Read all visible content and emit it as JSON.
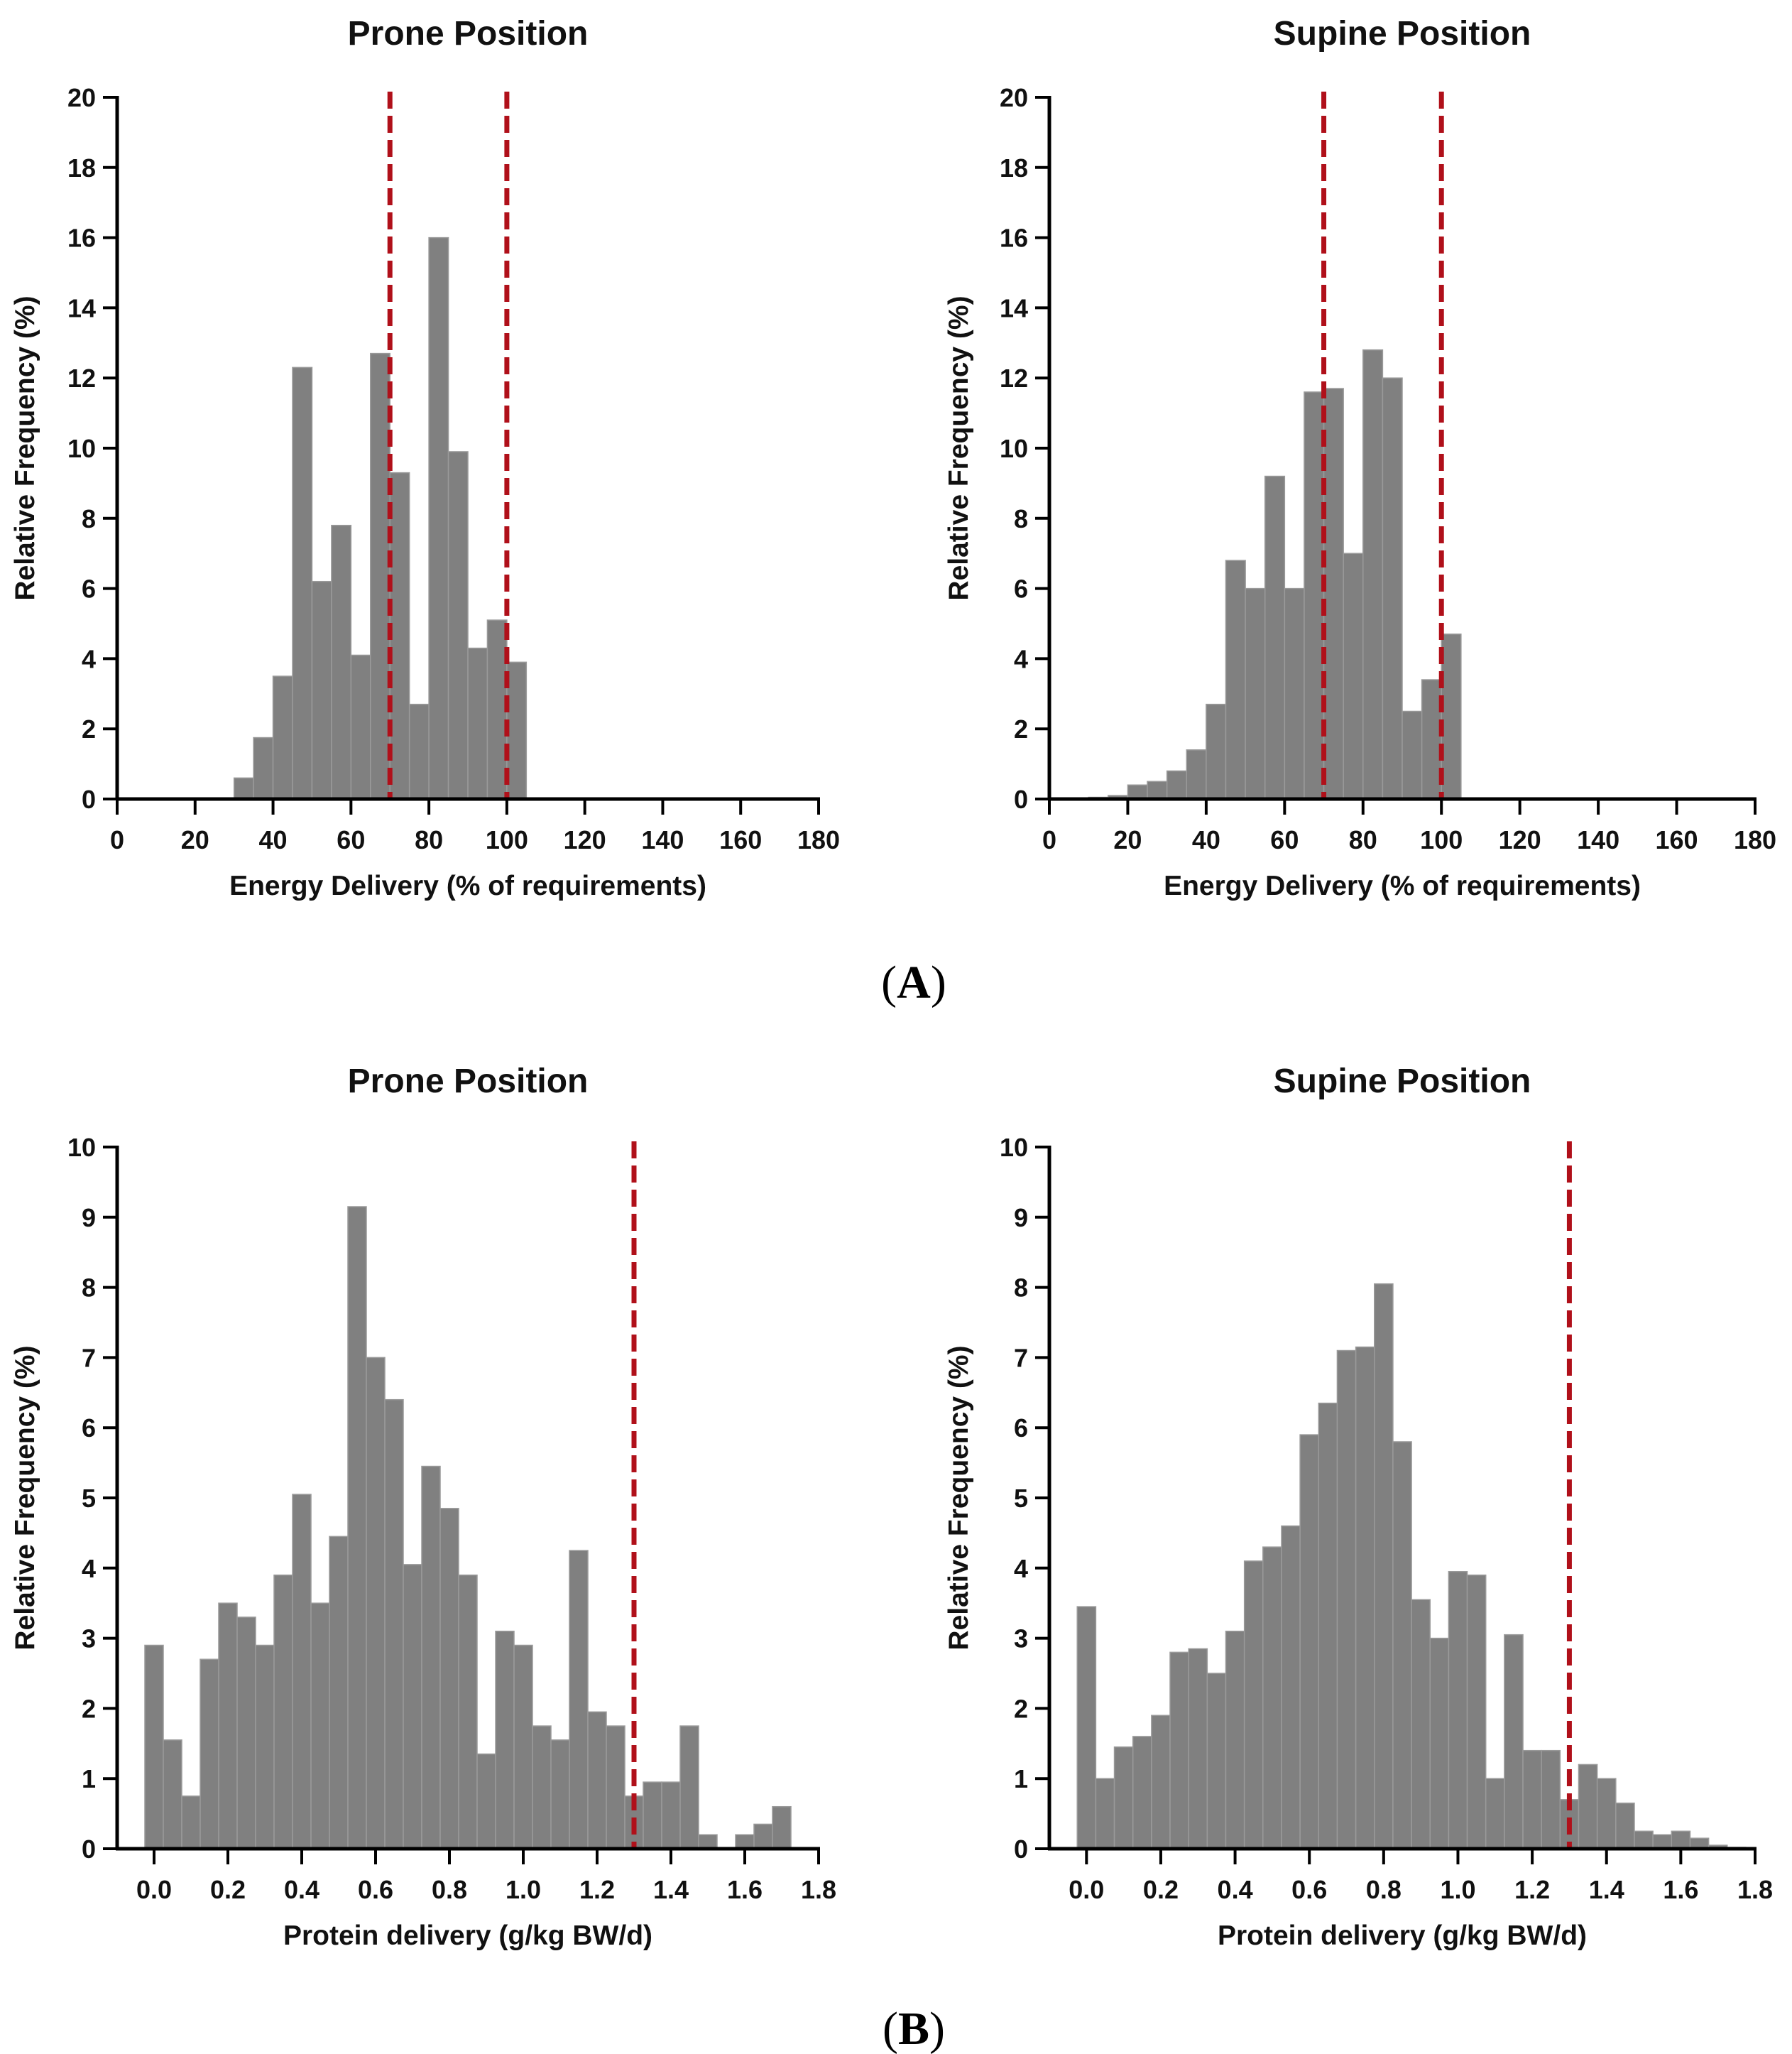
{
  "panels": [
    {
      "id": "A",
      "label_open": "(",
      "label_letter": "A",
      "label_close": ")"
    },
    {
      "id": "B",
      "label_open": "(",
      "label_letter": "B",
      "label_close": ")"
    }
  ],
  "colors": {
    "bar": "#808080",
    "bar_edge": "#9a9a9a",
    "refline": "#b0101a",
    "axis": "#000000"
  },
  "chart_data": [
    {
      "type": "bar",
      "title": "Prone Position",
      "xlabel": "Energy Delivery (% of requirements)",
      "ylabel": "Relative Frequency (%)",
      "xlim": [
        0,
        180
      ],
      "ylim": [
        0,
        20
      ],
      "xticks": [
        0,
        20,
        40,
        60,
        80,
        100,
        120,
        140,
        160,
        180
      ],
      "yticks": [
        0,
        2,
        4,
        6,
        8,
        10,
        12,
        14,
        16,
        18,
        20
      ],
      "bin_width": 5,
      "bins": [
        32.5,
        37.5,
        42.5,
        47.5,
        52.5,
        57.5,
        62.5,
        67.5,
        72.5,
        77.5,
        82.5,
        87.5,
        92.5,
        97.5,
        102.5
      ],
      "values": [
        0.6,
        1.75,
        3.5,
        12.3,
        6.2,
        7.8,
        4.1,
        12.7,
        9.3,
        2.7,
        16.0,
        9.9,
        4.3,
        5.1,
        3.9
      ],
      "reference_lines": [
        70,
        100
      ]
    },
    {
      "type": "bar",
      "title": "Supine Position",
      "xlabel": "Energy Delivery (% of requirements)",
      "ylabel": "Relative Frequency (%)",
      "xlim": [
        0,
        180
      ],
      "ylim": [
        0,
        20
      ],
      "xticks": [
        0,
        20,
        40,
        60,
        80,
        100,
        120,
        140,
        160,
        180
      ],
      "yticks": [
        0,
        2,
        4,
        6,
        8,
        10,
        12,
        14,
        16,
        18,
        20
      ],
      "bin_width": 5,
      "bins": [
        12.5,
        17.5,
        22.5,
        27.5,
        32.5,
        37.5,
        42.5,
        47.5,
        52.5,
        57.5,
        62.5,
        67.5,
        72.5,
        77.5,
        82.5,
        87.5,
        92.5,
        97.5,
        102.5
      ],
      "values": [
        0.05,
        0.1,
        0.4,
        0.5,
        0.8,
        1.4,
        2.7,
        6.8,
        6.0,
        9.2,
        6.0,
        11.6,
        11.7,
        7.0,
        12.8,
        12.0,
        2.5,
        3.4,
        4.7
      ],
      "reference_lines": [
        70,
        100
      ]
    },
    {
      "type": "bar",
      "title": "Prone Position",
      "xlabel": "Protein delivery (g/kg BW/d)",
      "ylabel": "Relative Frequency (%)",
      "xlim": [
        -0.1,
        1.8
      ],
      "ylim": [
        0,
        10
      ],
      "xticks": [
        0.0,
        0.2,
        0.4,
        0.6,
        0.8,
        1.0,
        1.2,
        1.4,
        1.6,
        1.8
      ],
      "xtick_labels": [
        "0.0",
        "0.2",
        "0.4",
        "0.6",
        "0.8",
        "1.0",
        "1.2",
        "1.4",
        "1.6",
        "1.8"
      ],
      "yticks": [
        0,
        1,
        2,
        3,
        4,
        5,
        6,
        7,
        8,
        9,
        10
      ],
      "bin_width": 0.05,
      "bins": [
        0.0,
        0.05,
        0.1,
        0.15,
        0.2,
        0.25,
        0.3,
        0.35,
        0.4,
        0.45,
        0.5,
        0.55,
        0.6,
        0.65,
        0.7,
        0.75,
        0.8,
        0.85,
        0.9,
        0.95,
        1.0,
        1.05,
        1.1,
        1.15,
        1.2,
        1.25,
        1.3,
        1.35,
        1.4,
        1.45,
        1.5,
        1.55,
        1.6,
        1.65,
        1.7
      ],
      "values": [
        2.9,
        1.55,
        0.75,
        2.7,
        3.5,
        3.3,
        2.9,
        3.9,
        5.05,
        3.5,
        4.45,
        9.15,
        7.0,
        6.4,
        4.05,
        5.45,
        4.85,
        3.9,
        1.35,
        3.1,
        2.9,
        1.75,
        1.55,
        4.25,
        1.95,
        1.75,
        0.75,
        0.95,
        0.95,
        1.75,
        0.2,
        0.0,
        0.2,
        0.35,
        0.6
      ],
      "reference_lines": [
        1.3
      ]
    },
    {
      "type": "bar",
      "title": "Supine Position",
      "xlabel": "Protein delivery (g/kg BW/d)",
      "ylabel": "Relative Frequency (%)",
      "xlim": [
        -0.1,
        1.8
      ],
      "ylim": [
        0,
        10
      ],
      "xticks": [
        0.0,
        0.2,
        0.4,
        0.6,
        0.8,
        1.0,
        1.2,
        1.4,
        1.6,
        1.8
      ],
      "xtick_labels": [
        "0.0",
        "0.2",
        "0.4",
        "0.6",
        "0.8",
        "1.0",
        "1.2",
        "1.4",
        "1.6",
        "1.8"
      ],
      "yticks": [
        0,
        1,
        2,
        3,
        4,
        5,
        6,
        7,
        8,
        9,
        10
      ],
      "bin_width": 0.05,
      "bins": [
        0.0,
        0.05,
        0.1,
        0.15,
        0.2,
        0.25,
        0.3,
        0.35,
        0.4,
        0.45,
        0.5,
        0.55,
        0.6,
        0.65,
        0.7,
        0.75,
        0.8,
        0.85,
        0.9,
        0.95,
        1.0,
        1.05,
        1.1,
        1.15,
        1.2,
        1.25,
        1.3,
        1.35,
        1.4,
        1.45,
        1.5,
        1.55,
        1.6,
        1.65,
        1.7,
        1.75
      ],
      "values": [
        3.45,
        1.0,
        1.45,
        1.6,
        1.9,
        2.8,
        2.85,
        2.5,
        3.1,
        4.1,
        4.3,
        4.6,
        5.9,
        6.35,
        7.1,
        7.15,
        8.05,
        5.8,
        3.55,
        3.0,
        3.95,
        3.9,
        1.0,
        3.05,
        1.4,
        1.4,
        0.7,
        1.2,
        1.0,
        0.65,
        0.25,
        0.2,
        0.25,
        0.15,
        0.05,
        0.02
      ],
      "reference_lines": [
        1.3
      ]
    }
  ]
}
